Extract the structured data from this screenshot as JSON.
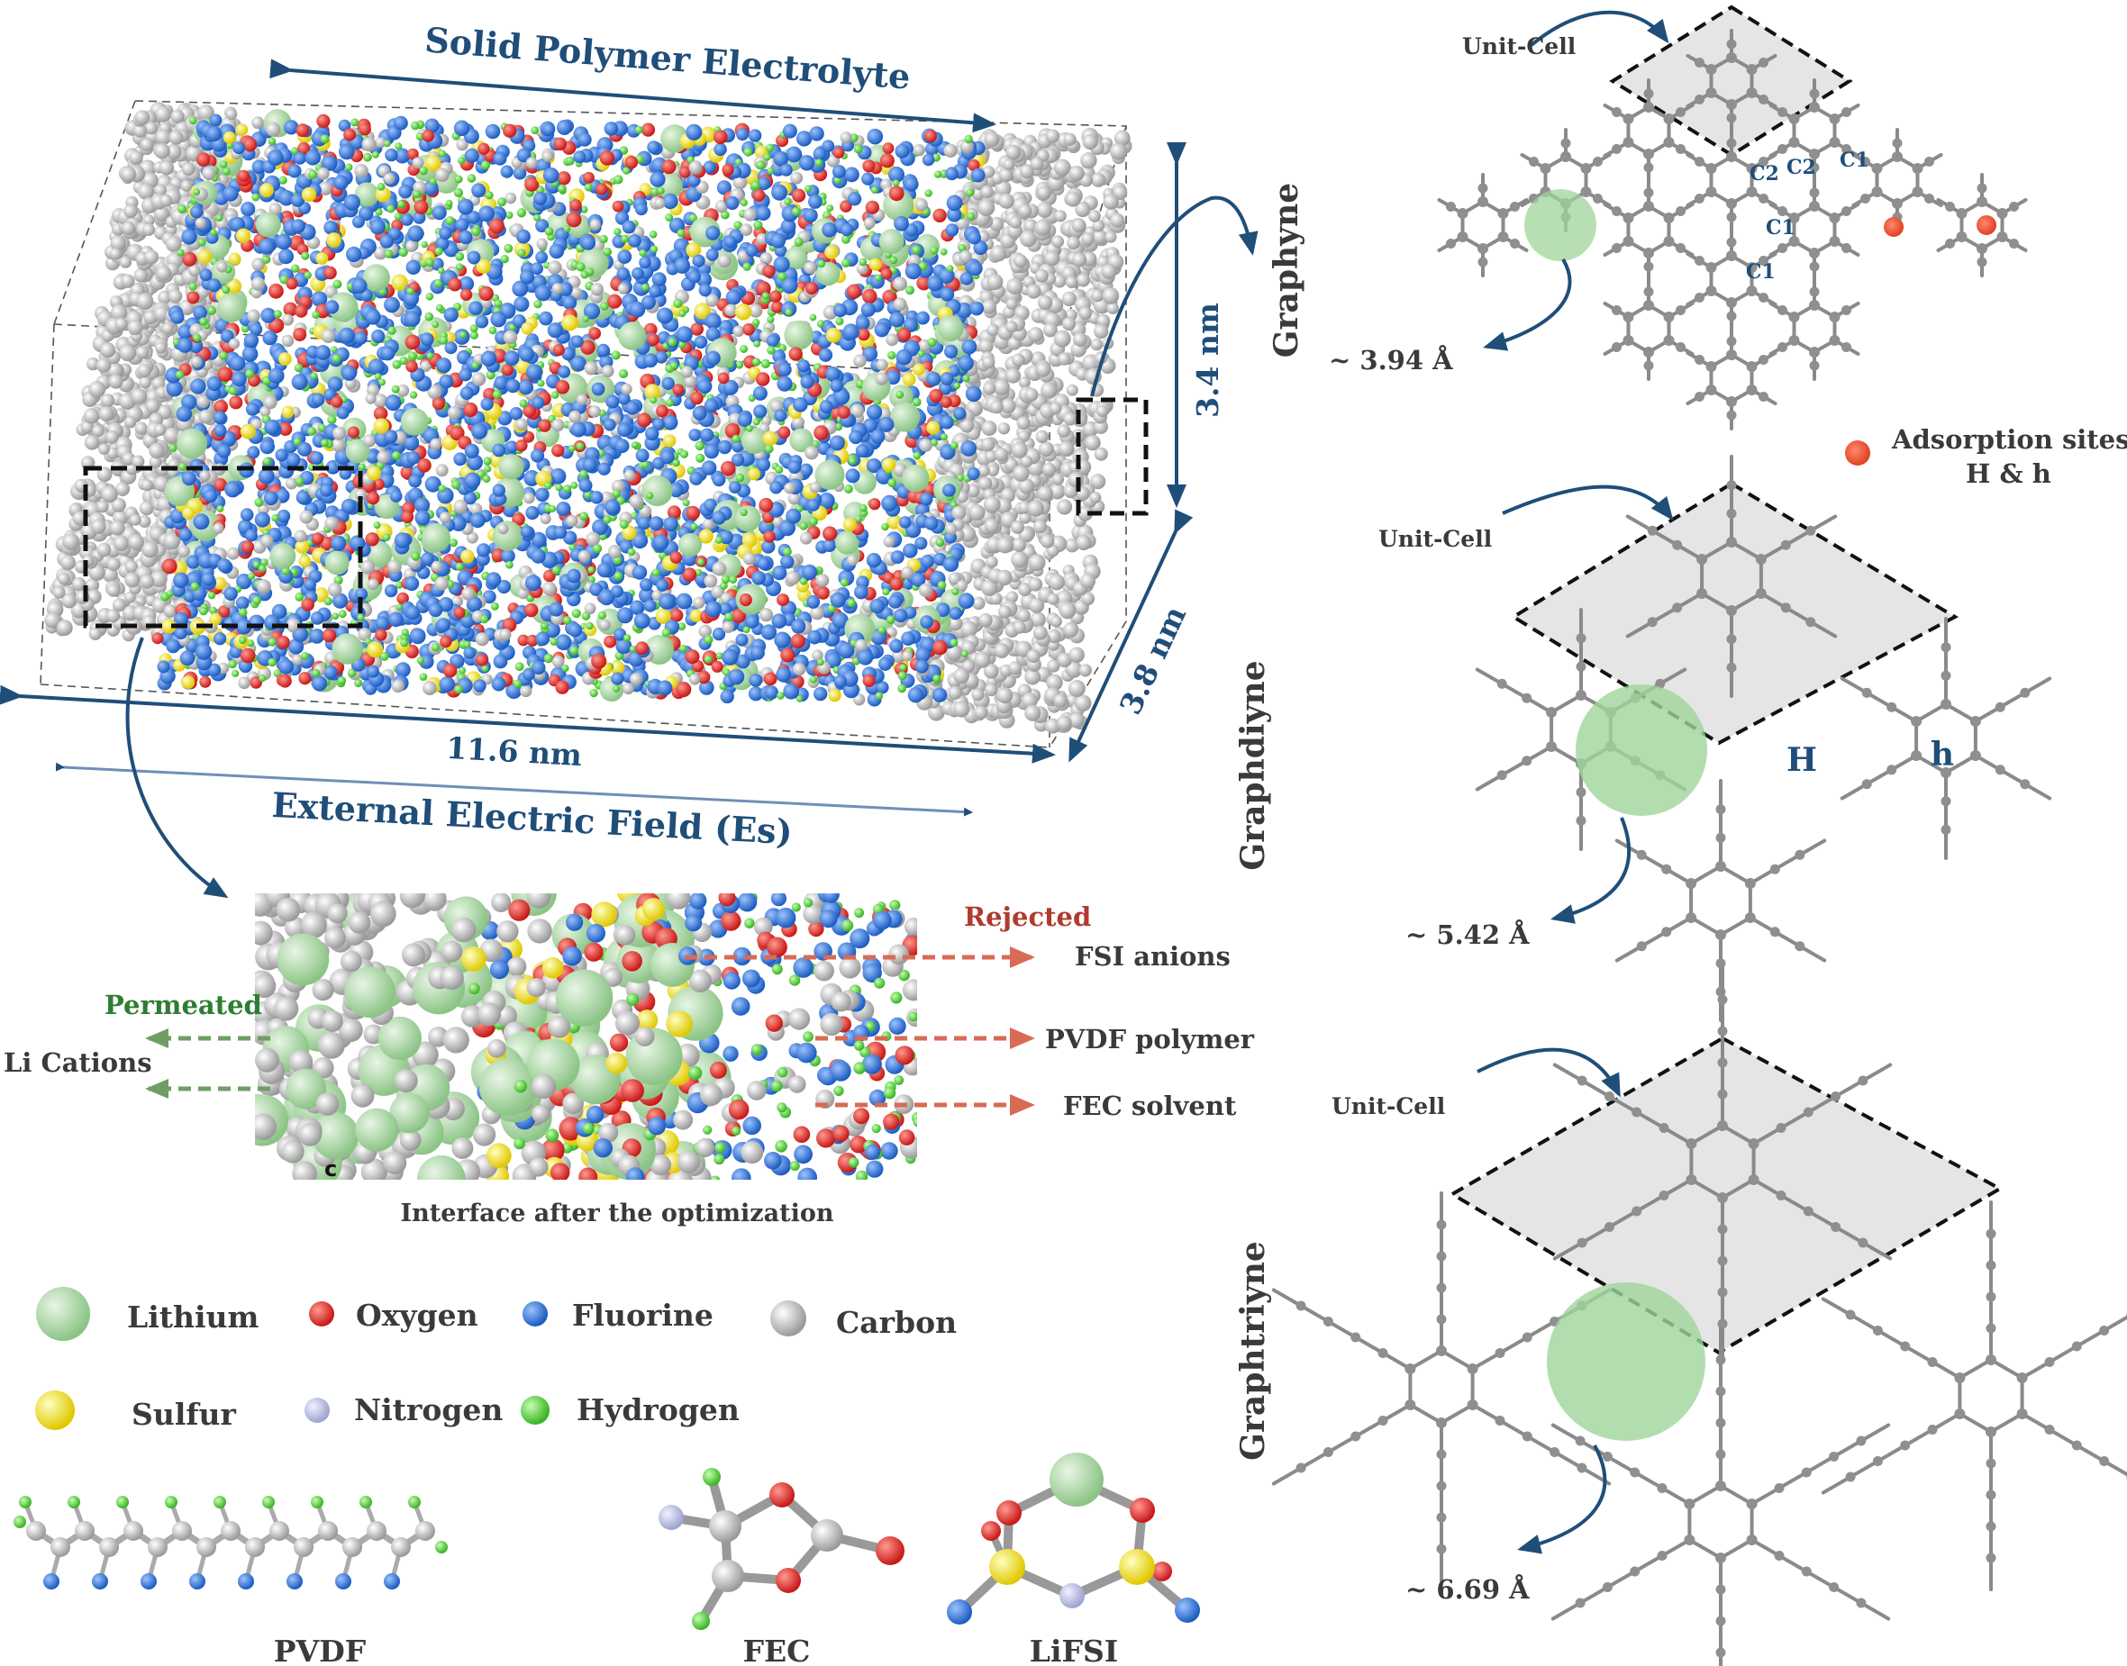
{
  "colors": {
    "lithium": "#9fd49a",
    "oxygen": "#e22d2d",
    "fluorine": "#2e74d8",
    "carbon": "#c9c9c9",
    "sulfur": "#f0e030",
    "nitrogen": "#b9bde0",
    "hydrogen": "#53d43b",
    "blue_text": "#1f4e79",
    "permeated": "#2e7d32",
    "rejected": "#b03a2e"
  },
  "simulation_box": {
    "title": "Solid Polymer Electrolyte",
    "length_label": "11.6 nm",
    "height_label": "3.4 nm",
    "depth_label": "3.8 nm",
    "field_label": "External Electric Field (Es)"
  },
  "interface": {
    "caption": "Interface after the optimization",
    "permeated_label": "Permeated",
    "permeated_items": [
      "Li Cations"
    ],
    "rejected_label": "Rejected",
    "rejected_items": [
      "FSI anions",
      "PVDF polymer",
      "FEC solvent"
    ],
    "corner_mark": "c"
  },
  "legend": {
    "atoms": [
      {
        "name": "Lithium",
        "icon": "lithium-atom-icon"
      },
      {
        "name": "Oxygen",
        "icon": "oxygen-atom-icon"
      },
      {
        "name": "Fluorine",
        "icon": "fluorine-atom-icon"
      },
      {
        "name": "Carbon",
        "icon": "carbon-atom-icon"
      },
      {
        "name": "Sulfur",
        "icon": "sulfur-atom-icon"
      },
      {
        "name": "Nitrogen",
        "icon": "nitrogen-atom-icon"
      },
      {
        "name": "Hydrogen",
        "icon": "hydrogen-atom-icon"
      }
    ]
  },
  "molecules": {
    "pvdf": "PVDF",
    "fec": "FEC",
    "lifsi": "LiFSI"
  },
  "membranes": {
    "graphyne": {
      "name": "Graphyne",
      "unit_cell": "Unit-Cell",
      "pore": "~ 3.94 Å",
      "site_labels": [
        "C2",
        "C2",
        "C1",
        "C1",
        "C1"
      ]
    },
    "graphdiyne": {
      "name": "Graphdiyne",
      "unit_cell": "Unit-Cell",
      "pore": "~ 5.42 Å",
      "site_H": "H",
      "site_h": "h"
    },
    "graphtriyne": {
      "name": "Graphtriyne",
      "unit_cell": "Unit-Cell",
      "pore": "~ 6.69 Å"
    },
    "adsorption_sites": {
      "line1": "Adsorption sites",
      "line2": "H & h"
    }
  }
}
